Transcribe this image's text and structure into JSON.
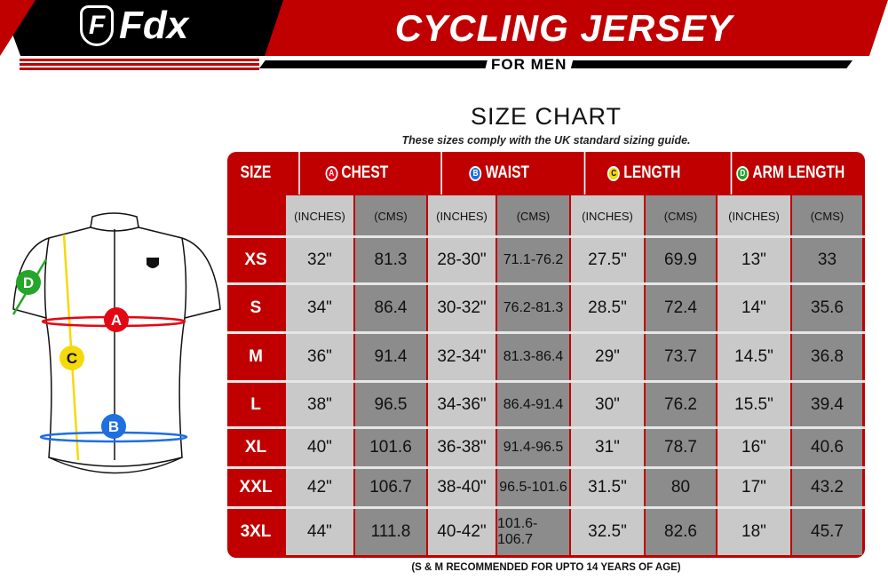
{
  "brand": "Fdx",
  "header": {
    "title": "CYCLING JERSEY",
    "subtitle": "FOR MEN"
  },
  "chart_title": "SIZE CHART",
  "chart_subtitle": "These sizes comply with the UK standard sizing guide.",
  "colors": {
    "brand_red": "#c00000",
    "chest": "#e30613",
    "waist": "#1e6fe0",
    "length": "#f5d90a",
    "arm_length": "#25a52a"
  },
  "diagram_labels": [
    "A",
    "B",
    "C",
    "D"
  ],
  "table": {
    "size_header": "SIZE",
    "groups": [
      {
        "badge": "A",
        "label": "CHEST",
        "color": "#e30613"
      },
      {
        "badge": "B",
        "label": "WAIST",
        "color": "#1e6fe0"
      },
      {
        "badge": "C",
        "label": "LENGTH",
        "color": "#f5d90a"
      },
      {
        "badge": "D",
        "label": "ARM LENGTH",
        "color": "#25a52a"
      }
    ],
    "units": [
      "(INCHES)",
      "(CMS)"
    ],
    "rows": [
      {
        "size": "XS",
        "values": [
          "32\"",
          "81.3",
          "28-30\"",
          "71.1-76.2",
          "27.5\"",
          "69.9",
          "13\"",
          "33"
        ]
      },
      {
        "size": "S",
        "values": [
          "34\"",
          "86.4",
          "30-32\"",
          "76.2-81.3",
          "28.5\"",
          "72.4",
          "14\"",
          "35.6"
        ]
      },
      {
        "size": "M",
        "values": [
          "36\"",
          "91.4",
          "32-34\"",
          "81.3-86.4",
          "29\"",
          "73.7",
          "14.5\"",
          "36.8"
        ]
      },
      {
        "size": "L",
        "values": [
          "38\"",
          "96.5",
          "34-36\"",
          "86.4-91.4",
          "30\"",
          "76.2",
          "15.5\"",
          "39.4"
        ]
      },
      {
        "size": "XL",
        "values": [
          "40\"",
          "101.6",
          "36-38\"",
          "91.4-96.5",
          "31\"",
          "78.7",
          "16\"",
          "40.6"
        ]
      },
      {
        "size": "XXL",
        "values": [
          "42\"",
          "106.7",
          "38-40\"",
          "96.5-101.6",
          "31.5\"",
          "80",
          "17\"",
          "43.2"
        ]
      },
      {
        "size": "3XL",
        "values": [
          "44\"",
          "111.8",
          "40-42\"",
          "101.6-106.7",
          "32.5\"",
          "82.6",
          "18\"",
          "45.7"
        ]
      }
    ]
  },
  "footnote": "(S & M RECOMMENDED FOR UPTO 14 YEARS OF AGE)"
}
